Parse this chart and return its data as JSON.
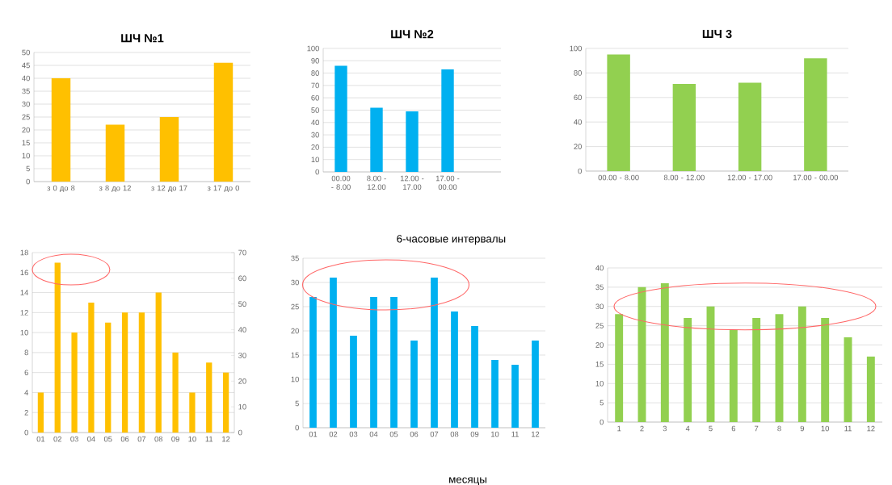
{
  "chart_data": [
    {
      "type": "bar",
      "title": "ШЧ №1",
      "categories": [
        "з 0 до 8",
        "з 8 до 12",
        "з 12 до 17",
        "з 17 до 0"
      ],
      "values": [
        40,
        22,
        25,
        46
      ],
      "color": "#ffc000",
      "ylim": [
        0,
        50
      ],
      "yticks": [
        0,
        5,
        10,
        15,
        20,
        25,
        30,
        35,
        40,
        45,
        50
      ],
      "grid": "y"
    },
    {
      "type": "bar",
      "title": "ШЧ №2",
      "xlabel": "6-часовые интервалы",
      "categories": [
        "00.00 - 8.00",
        "8.00 - 12.00",
        "12.00 - 17.00",
        "17.00 - 00.00",
        null
      ],
      "values": [
        86,
        52,
        49,
        83,
        null
      ],
      "color": "#00b0f0",
      "ylim": [
        0,
        100
      ],
      "yticks": [
        0,
        10,
        20,
        30,
        40,
        50,
        60,
        70,
        80,
        90,
        100
      ],
      "grid": "y"
    },
    {
      "type": "bar",
      "title": "ШЧ 3",
      "categories": [
        "00.00 - 8.00",
        "8.00 - 12.00",
        "12.00 - 17.00",
        "17.00 - 00.00"
      ],
      "values": [
        95,
        71,
        72,
        92
      ],
      "color": "#92d050",
      "ylim": [
        0,
        100
      ],
      "yticks": [
        0,
        20,
        40,
        60,
        80,
        100
      ],
      "grid": "y"
    },
    {
      "type": "bar",
      "categories": [
        "01",
        "02",
        "03",
        "04",
        "05",
        "06",
        "07",
        "08",
        "09",
        "10",
        "11",
        "12"
      ],
      "values": [
        4,
        17,
        10,
        13,
        11,
        12,
        12,
        14,
        8,
        4,
        7,
        6
      ],
      "color": "#ffc000",
      "ylim": [
        0,
        18
      ],
      "yticks": [
        0,
        2,
        4,
        6,
        8,
        10,
        12,
        14,
        16,
        18
      ],
      "y2lim": [
        0,
        70
      ],
      "y2ticks": [
        0,
        10,
        20,
        30,
        40,
        50,
        60,
        70
      ],
      "grid": "y"
    },
    {
      "type": "bar",
      "xlabel": "месяцы",
      "categories": [
        "01",
        "02",
        "03",
        "04",
        "05",
        "06",
        "07",
        "08",
        "09",
        "10",
        "11",
        "12"
      ],
      "values": [
        27,
        31,
        19,
        27,
        27,
        18,
        31,
        24,
        21,
        14,
        13,
        18
      ],
      "color": "#00b0f0",
      "ylim": [
        0,
        35
      ],
      "yticks": [
        0,
        5,
        10,
        15,
        20,
        25,
        30,
        35
      ],
      "grid": "y"
    },
    {
      "type": "bar",
      "categories": [
        "1",
        "2",
        "3",
        "4",
        "5",
        "6",
        "7",
        "8",
        "9",
        "10",
        "11",
        "12"
      ],
      "values": [
        28,
        35,
        36,
        27,
        30,
        24,
        27,
        28,
        30,
        27,
        22,
        17
      ],
      "color": "#92d050",
      "ylim": [
        0,
        40
      ],
      "yticks": [
        0,
        5,
        10,
        15,
        20,
        25,
        30,
        35,
        40
      ],
      "grid": "y"
    }
  ]
}
